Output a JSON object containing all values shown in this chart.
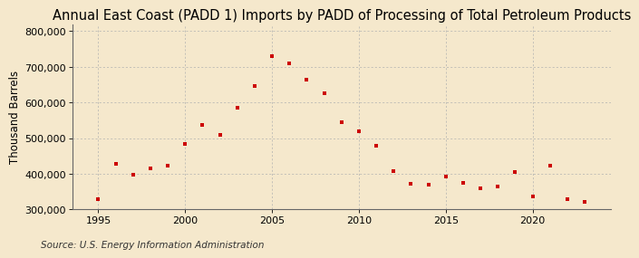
{
  "title": "Annual East Coast (PADD 1) Imports by PADD of Processing of Total Petroleum Products",
  "ylabel": "Thousand Barrels",
  "source": "Source: U.S. Energy Information Administration",
  "background_color": "#f5e8cc",
  "marker_color": "#cc0000",
  "years": [
    1995,
    1996,
    1997,
    1998,
    1999,
    2000,
    2001,
    2002,
    2003,
    2004,
    2005,
    2006,
    2007,
    2008,
    2009,
    2010,
    2011,
    2012,
    2013,
    2014,
    2015,
    2016,
    2017,
    2018,
    2019,
    2020,
    2021,
    2022,
    2023
  ],
  "values": [
    328000,
    428000,
    398000,
    415000,
    422000,
    483000,
    537000,
    510000,
    585000,
    645000,
    730000,
    710000,
    665000,
    625000,
    545000,
    520000,
    478000,
    408000,
    372000,
    368000,
    393000,
    375000,
    358000,
    363000,
    406000,
    337000,
    423000,
    328000,
    322000
  ],
  "xlim": [
    1993.5,
    2024.5
  ],
  "ylim": [
    300000,
    820000
  ],
  "yticks": [
    300000,
    400000,
    500000,
    600000,
    700000,
    800000
  ],
  "xticks": [
    1995,
    2000,
    2005,
    2010,
    2015,
    2020
  ],
  "grid_color": "#b0b0b0",
  "title_fontsize": 10.5,
  "axis_fontsize": 8.5,
  "tick_fontsize": 8,
  "source_fontsize": 7.5
}
